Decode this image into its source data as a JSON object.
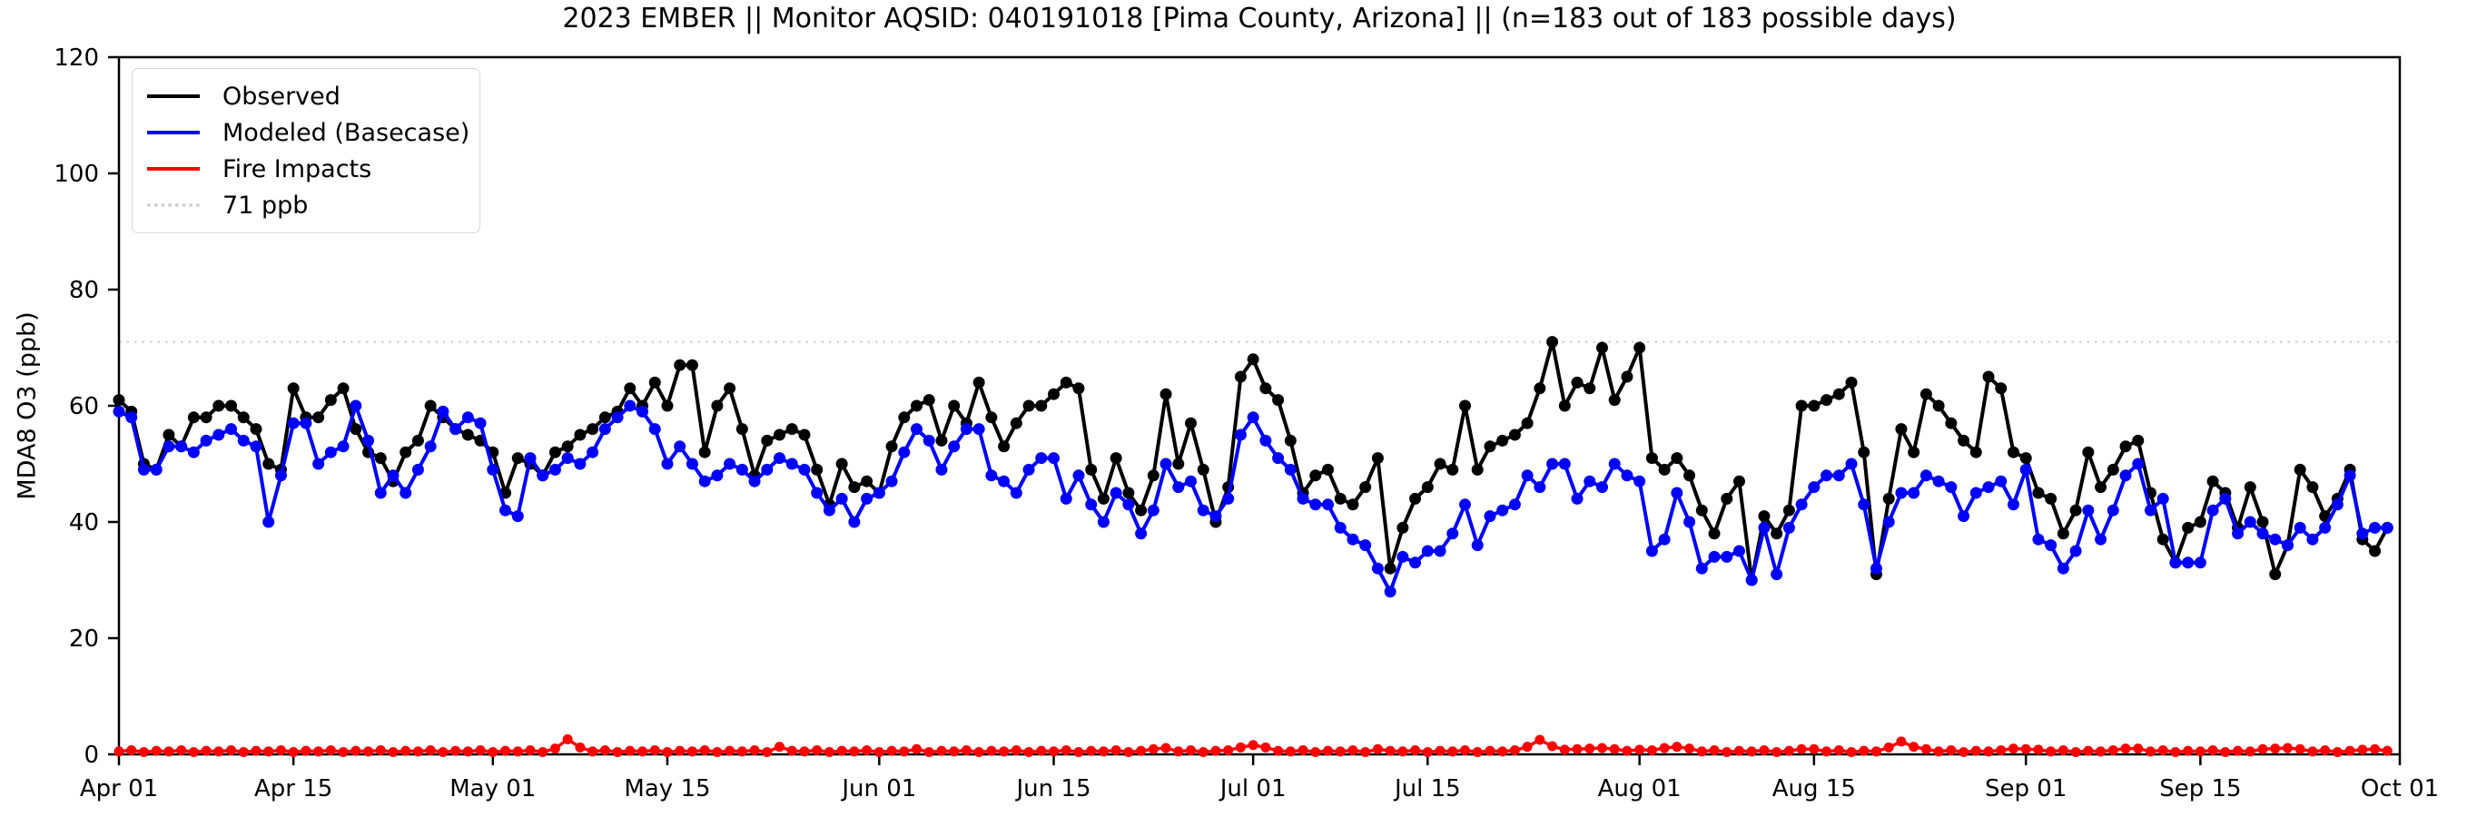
{
  "chart_data": {
    "type": "line",
    "title": "2023 EMBER || Monitor AQSID: 040191018 [Pima County, Arizona] || (n=183 out of 183 possible days)",
    "monitor_aqsid": "040191018",
    "location": "Pima County, Arizona",
    "n_days_shown": "183",
    "n_days_possible": "183",
    "xlabel": "",
    "ylabel": "MDA8 O3 (ppb)",
    "ylim": [
      0,
      120
    ],
    "y_ticks": [
      0,
      20,
      40,
      60,
      80,
      100,
      120
    ],
    "x_tick_labels": [
      "Apr 01",
      "Apr 15",
      "May 01",
      "May 15",
      "Jun 01",
      "Jun 15",
      "Jul 01",
      "Jul 15",
      "Aug 01",
      "Aug 15",
      "Sep 01",
      "Sep 15",
      "Oct 01"
    ],
    "x_tick_day_index": [
      0,
      14,
      30,
      44,
      61,
      75,
      91,
      105,
      122,
      136,
      153,
      167,
      183
    ],
    "x_span_days": 183,
    "n_days": 183,
    "date_range": "Apr 01 - Sep 30, 2023",
    "grid": false,
    "legend_position": "upper-left",
    "reference_line": {
      "value": 71,
      "label": "71 ppb",
      "color": "#d3d3d3",
      "style": "dotted"
    },
    "series": [
      {
        "name": "Observed",
        "color": "#000000",
        "values": [
          61,
          59,
          50,
          49,
          55,
          53,
          58,
          58,
          60,
          60,
          58,
          56,
          50,
          49,
          63,
          58,
          58,
          61,
          63,
          56,
          52,
          51,
          47,
          52,
          54,
          60,
          58,
          56,
          55,
          54,
          52,
          45,
          51,
          50,
          48,
          52,
          53,
          55,
          56,
          58,
          59,
          63,
          60,
          64,
          60,
          67,
          67,
          52,
          60,
          63,
          56,
          48,
          54,
          55,
          56,
          55,
          49,
          43,
          50,
          46,
          47,
          45,
          53,
          58,
          60,
          61,
          54,
          60,
          57,
          64,
          58,
          53,
          57,
          60,
          60,
          62,
          64,
          63,
          49,
          44,
          51,
          45,
          42,
          48,
          62,
          50,
          57,
          49,
          40,
          46,
          65,
          68,
          63,
          61,
          54,
          45,
          48,
          49,
          44,
          43,
          46,
          51,
          32,
          39,
          44,
          46,
          50,
          49,
          60,
          49,
          53,
          54,
          55,
          57,
          63,
          71,
          60,
          64,
          63,
          70,
          61,
          65,
          70,
          51,
          49,
          51,
          48,
          42,
          38,
          44,
          47,
          30,
          41,
          38,
          42,
          60,
          60,
          61,
          62,
          64,
          52,
          31,
          44,
          56,
          52,
          62,
          60,
          57,
          54,
          52,
          65,
          63,
          52,
          51,
          45,
          44,
          38,
          42,
          52,
          46,
          49,
          53,
          54,
          45,
          37,
          33,
          39,
          40,
          47,
          45,
          39,
          46,
          40,
          31,
          36,
          49,
          46,
          41,
          44,
          49,
          37,
          35,
          39
        ]
      },
      {
        "name": "Modeled (Basecase)",
        "color": "#0000ff",
        "values": [
          59,
          58,
          49,
          49,
          53,
          53,
          52,
          54,
          55,
          56,
          54,
          53,
          40,
          48,
          57,
          57,
          50,
          52,
          53,
          60,
          54,
          45,
          48,
          45,
          49,
          53,
          59,
          56,
          58,
          57,
          49,
          42,
          41,
          51,
          48,
          49,
          51,
          50,
          52,
          56,
          58,
          60,
          59,
          56,
          50,
          53,
          50,
          47,
          48,
          50,
          49,
          47,
          49,
          51,
          50,
          49,
          45,
          42,
          44,
          40,
          44,
          45,
          47,
          52,
          56,
          54,
          49,
          53,
          56,
          56,
          48,
          47,
          45,
          49,
          51,
          51,
          44,
          48,
          43,
          40,
          45,
          43,
          38,
          42,
          50,
          46,
          47,
          42,
          41,
          44,
          55,
          58,
          54,
          51,
          49,
          44,
          43,
          43,
          39,
          37,
          36,
          32,
          28,
          34,
          33,
          35,
          35,
          38,
          43,
          36,
          41,
          42,
          43,
          48,
          46,
          50,
          50,
          44,
          47,
          46,
          50,
          48,
          47,
          35,
          37,
          45,
          40,
          32,
          34,
          34,
          35,
          30,
          39,
          31,
          39,
          43,
          46,
          48,
          48,
          50,
          43,
          32,
          40,
          45,
          45,
          48,
          47,
          46,
          41,
          45,
          46,
          47,
          43,
          49,
          37,
          36,
          32,
          35,
          42,
          37,
          42,
          48,
          50,
          42,
          44,
          33,
          33,
          33,
          42,
          44,
          38,
          40,
          38,
          37,
          36,
          39,
          37,
          39,
          43,
          48,
          38,
          39,
          39
        ]
      },
      {
        "name": "Fire Impacts",
        "color": "#ff0000",
        "values": [
          0.5,
          0.7,
          0.4,
          0.6,
          0.5,
          0.7,
          0.4,
          0.6,
          0.5,
          0.7,
          0.4,
          0.6,
          0.5,
          0.7,
          0.4,
          0.6,
          0.5,
          0.7,
          0.4,
          0.6,
          0.5,
          0.7,
          0.4,
          0.6,
          0.5,
          0.7,
          0.4,
          0.6,
          0.5,
          0.7,
          0.4,
          0.6,
          0.5,
          0.7,
          0.4,
          1.0,
          2.6,
          1.2,
          0.5,
          0.7,
          0.4,
          0.6,
          0.5,
          0.7,
          0.4,
          0.6,
          0.5,
          0.7,
          0.4,
          0.6,
          0.5,
          0.7,
          0.4,
          1.3,
          0.6,
          0.5,
          0.7,
          0.4,
          0.6,
          0.5,
          0.7,
          0.4,
          0.6,
          0.5,
          0.9,
          0.4,
          0.6,
          0.5,
          0.7,
          0.4,
          0.6,
          0.5,
          0.7,
          0.4,
          0.6,
          0.5,
          0.7,
          0.4,
          0.6,
          0.5,
          0.7,
          0.4,
          0.6,
          0.9,
          1.1,
          0.5,
          0.7,
          0.4,
          0.6,
          0.7,
          1.2,
          1.6,
          1.2,
          0.6,
          0.5,
          0.7,
          0.4,
          0.6,
          0.5,
          0.7,
          0.4,
          0.9,
          0.6,
          0.5,
          0.7,
          0.4,
          0.6,
          0.5,
          0.7,
          0.4,
          0.6,
          0.5,
          0.7,
          1.3,
          2.5,
          1.4,
          0.8,
          0.9,
          1.0,
          1.1,
          0.9,
          0.6,
          0.8,
          0.7,
          1.1,
          1.3,
          1.0,
          0.5,
          0.7,
          0.4,
          0.6,
          0.5,
          0.7,
          0.4,
          0.6,
          0.9,
          0.9,
          0.5,
          0.7,
          0.4,
          0.6,
          0.5,
          1.2,
          2.2,
          1.3,
          0.9,
          0.5,
          0.7,
          0.4,
          0.6,
          0.5,
          0.7,
          1.0,
          0.9,
          0.8,
          0.5,
          0.7,
          0.4,
          0.6,
          0.5,
          0.7,
          1.0,
          1.0,
          0.5,
          0.7,
          0.4,
          0.6,
          0.5,
          0.7,
          0.4,
          0.6,
          0.5,
          0.9,
          1.0,
          1.1,
          0.9,
          0.5,
          0.7,
          0.4,
          0.6,
          0.8,
          0.9,
          0.6
        ]
      }
    ]
  },
  "legend": {
    "items": [
      {
        "label": "Observed",
        "color": "#000000",
        "line_style": "solid"
      },
      {
        "label": "Modeled (Basecase)",
        "color": "#0000ff",
        "line_style": "solid"
      },
      {
        "label": "Fire Impacts",
        "color": "#ff0000",
        "line_style": "solid"
      },
      {
        "label": "71 ppb",
        "color": "#d3d3d3",
        "line_style": "dotted"
      }
    ]
  },
  "axis_color": "#000000"
}
